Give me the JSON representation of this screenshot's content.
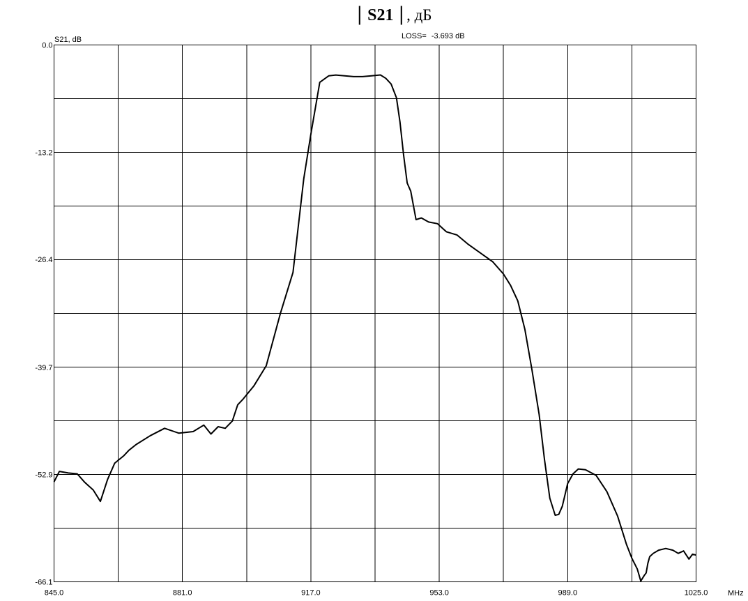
{
  "heading": {
    "bar_left": "|",
    "main": "S21",
    "bar_right": "|",
    "suffix": ", дБ"
  },
  "chart_data": {
    "type": "line",
    "ylabel": "S21, dB",
    "xunit": "MHz",
    "annotation": {
      "label": "LOSS=",
      "value": "-3.693 dB"
    },
    "xlim": [
      845,
      1025
    ],
    "ylim": [
      -66.1,
      0
    ],
    "x_ticks": [
      845,
      881,
      917,
      953,
      989,
      1025
    ],
    "x_tick_labels": [
      "845.0",
      "881.0",
      "917.0",
      "953.0",
      "989.0",
      "1025.0"
    ],
    "y_ticks": [
      0,
      -13.2,
      -26.4,
      -39.7,
      -52.9,
      -66.1
    ],
    "y_tick_labels": [
      "0.0",
      "-13.2",
      "-26.4",
      "-39.7",
      "-52.9",
      "-66.1"
    ],
    "grid": true,
    "grid_divisions": {
      "x": 10,
      "y": 10
    },
    "series": [
      {
        "x": [
          845.0,
          846.5,
          849.0,
          851.5,
          853.5,
          856.0,
          858.0,
          860.0,
          862.0,
          864.5,
          866.0,
          868.0,
          872.0,
          876.0,
          880.0,
          884.0,
          887.0,
          889.0,
          891.0,
          893.0,
          895.0,
          896.5,
          898.0,
          901.0,
          904.5,
          908.5,
          912.0,
          915.0,
          917.0,
          919.5,
          922.0,
          924.0,
          926.5,
          929.0,
          931.5,
          934.0,
          936.5,
          938.0,
          939.5,
          941.0,
          942.0,
          943.0,
          944.0,
          945.0,
          946.5,
          948.0,
          950.0,
          952.5,
          955.0,
          958.0,
          961.0,
          964.5,
          968.0,
          971.0,
          973.0,
          975.0,
          977.0,
          979.0,
          981.0,
          982.5,
          984.0,
          985.5,
          986.5,
          987.5,
          989.0,
          990.5,
          992.0,
          994.0,
          997.0,
          1000.0,
          1003.0,
          1005.5,
          1007.0,
          1008.5,
          1009.5,
          1010.5,
          1011.0,
          1011.5,
          1012.0,
          1013.0,
          1014.5,
          1016.5,
          1018.5,
          1020.0,
          1021.5,
          1023.0,
          1024.0,
          1025.0
        ],
        "values": [
          -53.8,
          -52.5,
          -52.7,
          -52.8,
          -53.8,
          -54.8,
          -56.2,
          -53.5,
          -51.5,
          -50.6,
          -49.9,
          -49.2,
          -48.1,
          -47.2,
          -47.8,
          -47.6,
          -46.8,
          -47.9,
          -47.0,
          -47.2,
          -46.3,
          -44.3,
          -43.6,
          -42.0,
          -39.5,
          -33.0,
          -28.0,
          -16.5,
          -11.0,
          -4.6,
          -3.8,
          -3.7,
          -3.8,
          -3.9,
          -3.9,
          -3.8,
          -3.69,
          -4.1,
          -4.8,
          -6.5,
          -9.5,
          -13.5,
          -17.0,
          -18.0,
          -21.5,
          -21.3,
          -21.8,
          -22.0,
          -23.0,
          -23.4,
          -24.5,
          -25.6,
          -26.7,
          -28.2,
          -29.6,
          -31.5,
          -35.0,
          -40.0,
          -45.5,
          -51.0,
          -55.8,
          -57.9,
          -57.8,
          -56.8,
          -54.0,
          -52.8,
          -52.2,
          -52.3,
          -53.0,
          -55.0,
          -58.0,
          -61.5,
          -63.2,
          -64.5,
          -66.0,
          -65.3,
          -65.0,
          -63.8,
          -63.0,
          -62.6,
          -62.2,
          -62.0,
          -62.2,
          -62.6,
          -62.3,
          -63.3,
          -62.7,
          -62.8
        ]
      }
    ]
  }
}
